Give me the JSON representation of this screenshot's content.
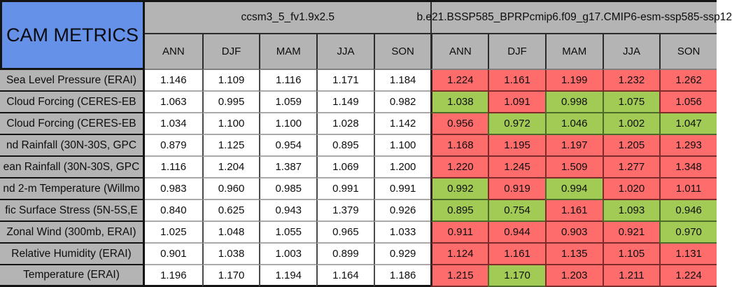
{
  "colors": {
    "header_blue": "#6592e8",
    "header_gray": "#b4b4b4",
    "better_green": "#a2cb56",
    "worse_red": "#ff6c6c",
    "grid_black": "#141414"
  },
  "chart_data": {
    "type": "table",
    "title": "CAM METRICS",
    "model_columns": [
      "ccsm3_5_fv1.9x2.5",
      "b.e21.BSSP585_BPRPcmip6.f09_g17.CMIP6-esm-ssp585-ssp12"
    ],
    "seasons": [
      "ANN",
      "DJF",
      "MAM",
      "JJA",
      "SON"
    ],
    "legend_note": "worse = red cell, better = green cell",
    "rows": [
      {
        "label": "Sea Level Pressure (ERAI)",
        "m1": [
          "1.146",
          "1.109",
          "1.116",
          "1.171",
          "1.184"
        ],
        "m2": [
          "1.224",
          "1.161",
          "1.199",
          "1.232",
          "1.262"
        ],
        "m2s": [
          "worse",
          "worse",
          "worse",
          "worse",
          "worse"
        ]
      },
      {
        "label": "Cloud Forcing (CERES-EB",
        "m1": [
          "1.063",
          "0.995",
          "1.059",
          "1.149",
          "0.982"
        ],
        "m2": [
          "1.038",
          "1.091",
          "0.998",
          "1.075",
          "1.056"
        ],
        "m2s": [
          "better",
          "worse",
          "better",
          "better",
          "worse"
        ]
      },
      {
        "label": "Cloud Forcing (CERES-EB",
        "m1": [
          "1.034",
          "1.100",
          "1.100",
          "1.028",
          "1.142"
        ],
        "m2": [
          "0.956",
          "0.972",
          "1.046",
          "1.002",
          "1.047"
        ],
        "m2s": [
          "worse",
          "better",
          "better",
          "better",
          "better"
        ]
      },
      {
        "label": "nd Rainfall (30N-30S, GPC",
        "m1": [
          "0.879",
          "1.125",
          "0.954",
          "0.895",
          "1.100"
        ],
        "m2": [
          "1.168",
          "1.195",
          "1.197",
          "1.205",
          "1.293"
        ],
        "m2s": [
          "worse",
          "worse",
          "worse",
          "worse",
          "worse"
        ]
      },
      {
        "label": "ean Rainfall (30N-30S, GPC",
        "m1": [
          "1.116",
          "1.204",
          "1.387",
          "1.069",
          "1.200"
        ],
        "m2": [
          "1.220",
          "1.245",
          "1.509",
          "1.277",
          "1.348"
        ],
        "m2s": [
          "worse",
          "worse",
          "worse",
          "worse",
          "worse"
        ]
      },
      {
        "label": "nd 2-m Temperature (Willmo",
        "m1": [
          "0.983",
          "0.960",
          "0.985",
          "0.991",
          "0.991"
        ],
        "m2": [
          "0.992",
          "0.919",
          "0.994",
          "1.020",
          "1.011"
        ],
        "m2s": [
          "better",
          "worse",
          "better",
          "worse",
          "worse"
        ]
      },
      {
        "label": "fic Surface Stress (5N-5S,E",
        "m1": [
          "0.840",
          "0.625",
          "0.943",
          "1.379",
          "0.926"
        ],
        "m2": [
          "0.895",
          "0.754",
          "1.161",
          "1.093",
          "0.946"
        ],
        "m2s": [
          "better",
          "better",
          "worse",
          "better",
          "better"
        ]
      },
      {
        "label": "Zonal Wind (300mb, ERAI)",
        "m1": [
          "1.025",
          "1.048",
          "1.055",
          "0.965",
          "1.033"
        ],
        "m2": [
          "0.911",
          "0.944",
          "0.903",
          "0.921",
          "0.970"
        ],
        "m2s": [
          "worse",
          "worse",
          "worse",
          "worse",
          "better"
        ]
      },
      {
        "label": "Relative Humidity (ERAI)",
        "m1": [
          "0.901",
          "1.038",
          "1.003",
          "0.899",
          "0.929"
        ],
        "m2": [
          "1.124",
          "1.161",
          "1.135",
          "1.105",
          "1.131"
        ],
        "m2s": [
          "worse",
          "worse",
          "worse",
          "worse",
          "worse"
        ]
      },
      {
        "label": "Temperature (ERAI)",
        "m1": [
          "1.196",
          "1.170",
          "1.194",
          "1.164",
          "1.186"
        ],
        "m2": [
          "1.215",
          "1.170",
          "1.203",
          "1.211",
          "1.224"
        ],
        "m2s": [
          "worse",
          "better",
          "worse",
          "worse",
          "worse"
        ]
      }
    ]
  }
}
